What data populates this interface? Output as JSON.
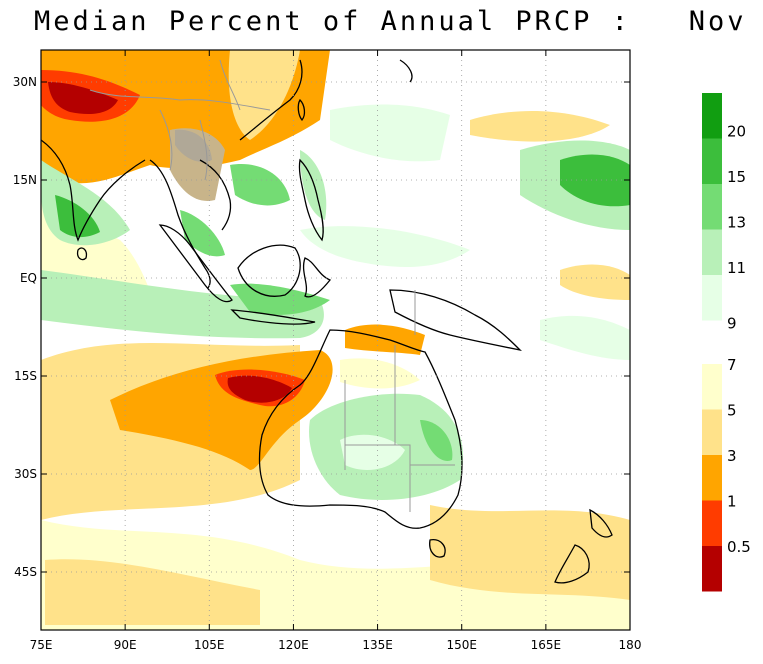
{
  "title": {
    "text": "Median Percent of Annual PRCP :",
    "month": "Nov"
  },
  "axes": {
    "lat_labels": [
      "30N",
      "15N",
      "EQ",
      "15S",
      "30S",
      "45S"
    ],
    "lon_labels": [
      "75E",
      "90E",
      "105E",
      "120E",
      "135E",
      "150E",
      "165E",
      "180"
    ],
    "grid": "dotted"
  },
  "colorbar": {
    "labels": [
      "20",
      "15",
      "13",
      "11",
      "9",
      "7",
      "5",
      "3",
      "1",
      "0.5"
    ],
    "colors": [
      "#119e11",
      "#3cbe3c",
      "#74dc74",
      "#b8f0b8",
      "#e6ffe6",
      "#ffffcc",
      "#ffe28a",
      "#ffa500",
      "#ff3c00",
      "#b40000"
    ]
  },
  "colors": {
    "land_outline": "#000000",
    "borders": "#999999",
    "grid": "#999999"
  }
}
